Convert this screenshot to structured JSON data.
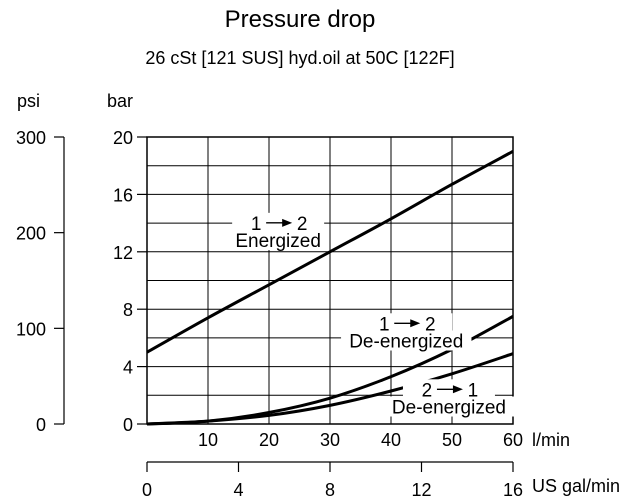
{
  "chart_data": {
    "type": "line",
    "title": "Pressure drop",
    "subtitle": "26 cSt [121 SUS] hyd.oil at 50C [122F]",
    "y_unit_bar": "bar",
    "y_unit_psi": "psi",
    "x_unit_lmin": "l/min",
    "x_unit_gal": "US gal/min",
    "xlim": [
      0,
      60
    ],
    "ylim": [
      0,
      20
    ],
    "psi_lim": [
      0,
      300
    ],
    "gal_lim": [
      0,
      16
    ],
    "x_ticks": [
      10,
      20,
      30,
      40,
      50,
      60
    ],
    "y_ticks": [
      0,
      4,
      8,
      12,
      16,
      20
    ],
    "psi_ticks": [
      0,
      100,
      200,
      300
    ],
    "gal_ticks": [
      0,
      4,
      8,
      12,
      16
    ],
    "grid": true,
    "series": [
      {
        "name": "1 → 2 Energized",
        "label_top": "1 → 2",
        "label_bottom": "Energized",
        "x": [
          0,
          10,
          20,
          30,
          40,
          50,
          60
        ],
        "values": [
          5.0,
          7.4,
          9.7,
          12.0,
          14.3,
          16.7,
          19.0
        ]
      },
      {
        "name": "1 → 2 De-energized",
        "label_top": "1 → 2",
        "label_bottom": "De-energized",
        "x": [
          0,
          10,
          20,
          30,
          40,
          50,
          60
        ],
        "values": [
          0,
          0.2,
          0.8,
          1.8,
          3.3,
          5.2,
          7.5
        ]
      },
      {
        "name": "2 → 1 De-energized",
        "label_top": "2 → 1",
        "label_bottom": "De-energized",
        "x": [
          0,
          10,
          20,
          30,
          40,
          50,
          60
        ],
        "values": [
          0,
          0.2,
          0.6,
          1.3,
          2.3,
          3.5,
          4.9
        ]
      }
    ]
  }
}
